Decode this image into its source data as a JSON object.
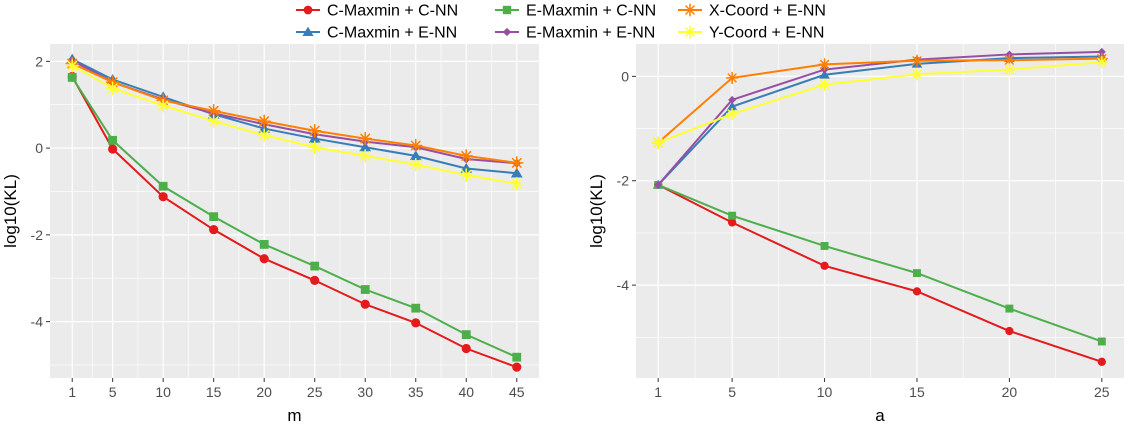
{
  "legend": [
    {
      "name": "C-Maxmin + C-NN",
      "color": "#E41A1C",
      "marker": "circle"
    },
    {
      "name": "C-Maxmin + E-NN",
      "color": "#377EB8",
      "marker": "triangle"
    },
    {
      "name": "E-Maxmin + C-NN",
      "color": "#4DAF4A",
      "marker": "square"
    },
    {
      "name": "E-Maxmin + E-NN",
      "color": "#984EA3",
      "marker": "diamond"
    },
    {
      "name": "X-Coord + E-NN",
      "color": "#FF7F00",
      "marker": "asterisk"
    },
    {
      "name": "Y-Coord + E-NN",
      "color": "#FFFF33",
      "marker": "asterisk"
    }
  ],
  "chart_data": [
    {
      "type": "line",
      "xlabel": "m",
      "ylabel": "log10(KL)",
      "x": [
        1,
        5,
        10,
        15,
        20,
        25,
        30,
        35,
        40,
        45
      ],
      "xlim": [
        -1.2,
        47.2
      ],
      "ylim": [
        -5.3,
        2.4
      ],
      "xticks": [
        1,
        5,
        10,
        15,
        20,
        25,
        30,
        35,
        40,
        45
      ],
      "yticks": [
        2,
        0,
        -2,
        -4
      ],
      "ytick_labels": [
        "2",
        "0",
        "-2",
        "-4"
      ],
      "series": [
        {
          "name": "C-Maxmin + C-NN",
          "values": [
            1.65,
            -0.02,
            -1.12,
            -1.88,
            -2.55,
            -3.05,
            -3.6,
            -4.03,
            -4.62,
            -5.05
          ]
        },
        {
          "name": "C-Maxmin + E-NN",
          "values": [
            2.05,
            1.58,
            1.18,
            0.78,
            0.45,
            0.22,
            0.02,
            -0.18,
            -0.47,
            -0.58
          ]
        },
        {
          "name": "E-Maxmin + C-NN",
          "values": [
            1.63,
            0.18,
            -0.88,
            -1.58,
            -2.22,
            -2.72,
            -3.26,
            -3.69,
            -4.3,
            -4.82
          ]
        },
        {
          "name": "E-Maxmin + E-NN",
          "values": [
            2.02,
            1.52,
            1.12,
            0.8,
            0.55,
            0.32,
            0.15,
            0.02,
            -0.25,
            -0.35
          ]
        },
        {
          "name": "X-Coord + E-NN",
          "values": [
            1.95,
            1.52,
            1.1,
            0.86,
            0.62,
            0.4,
            0.22,
            0.06,
            -0.18,
            -0.34
          ]
        },
        {
          "name": "Y-Coord + E-NN",
          "values": [
            1.9,
            1.38,
            0.98,
            0.62,
            0.3,
            0.02,
            -0.18,
            -0.38,
            -0.62,
            -0.82
          ]
        }
      ]
    },
    {
      "type": "line",
      "xlabel": "a",
      "ylabel": "log10(KL)",
      "x": [
        1,
        5,
        10,
        15,
        20,
        25
      ],
      "xlim": [
        -0.2,
        26.2
      ],
      "ylim": [
        -5.78,
        0.62
      ],
      "xticks": [
        1,
        5,
        10,
        15,
        20,
        25
      ],
      "yticks": [
        0,
        -2,
        -4
      ],
      "ytick_labels": [
        "0",
        "-2",
        "-4"
      ],
      "series": [
        {
          "name": "C-Maxmin + C-NN",
          "values": [
            -2.08,
            -2.8,
            -3.63,
            -4.12,
            -4.88,
            -5.47
          ]
        },
        {
          "name": "C-Maxmin + E-NN",
          "values": [
            -2.08,
            -0.58,
            0.03,
            0.24,
            0.35,
            0.38
          ]
        },
        {
          "name": "E-Maxmin + C-NN",
          "values": [
            -2.08,
            -2.67,
            -3.25,
            -3.77,
            -4.45,
            -5.08
          ]
        },
        {
          "name": "E-Maxmin + E-NN",
          "values": [
            -2.08,
            -0.45,
            0.13,
            0.32,
            0.42,
            0.47
          ]
        },
        {
          "name": "X-Coord + E-NN",
          "values": [
            -1.27,
            -0.03,
            0.23,
            0.3,
            0.31,
            0.34
          ]
        },
        {
          "name": "Y-Coord + E-NN",
          "values": [
            -1.27,
            -0.72,
            -0.16,
            0.04,
            0.13,
            0.27
          ]
        }
      ]
    }
  ]
}
